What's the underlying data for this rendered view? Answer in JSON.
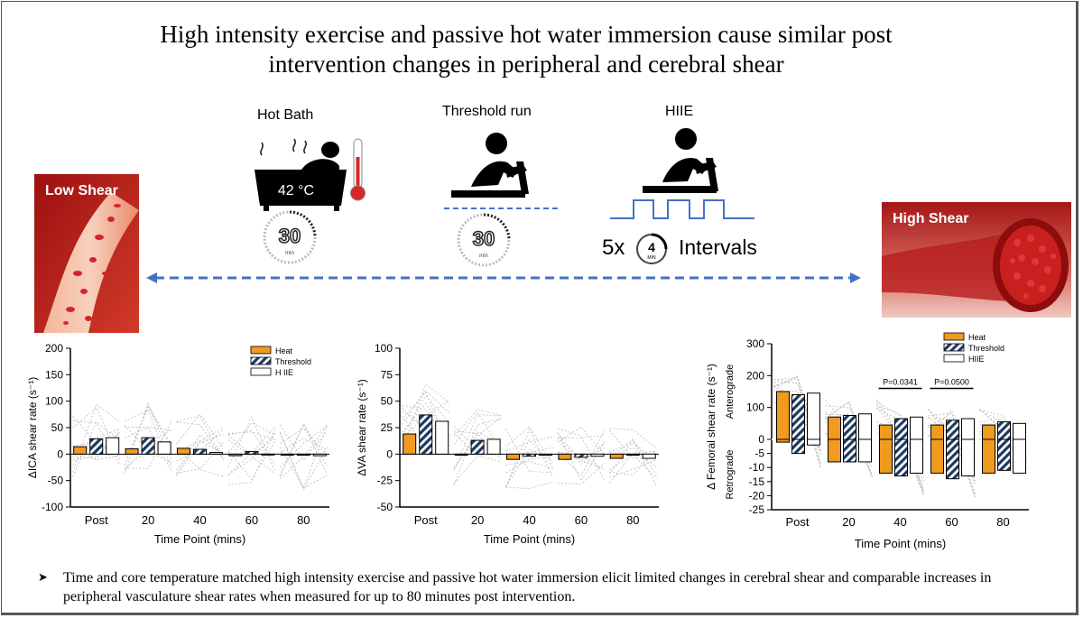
{
  "title_line1": "High intensity exercise and passive hot water immersion cause similar post",
  "title_line2": "intervention changes in peripheral and cerebral shear",
  "protocols": {
    "hot_bath": {
      "label": "Hot  Bath",
      "temp": "42 °C",
      "timer": "30",
      "timer_unit": "min"
    },
    "threshold": {
      "label": "Threshold run",
      "timer": "30",
      "timer_unit": "min"
    },
    "hiie": {
      "label": "HIIE",
      "reps": "5x",
      "interval_minutes": "4",
      "interval_unit": "MIN",
      "intervals_label": "Intervals"
    }
  },
  "low_shear_label": "Low Shear",
  "high_shear_label": "High Shear",
  "icons": [
    "bathtub-icon",
    "thermometer-icon",
    "timer-icon",
    "treadmill-runner-icon",
    "interval-timer-icon",
    "double-arrow-icon"
  ],
  "colors": {
    "heat": "#F09A1F",
    "threshold": "#1F3A5F",
    "hiie": "#FFFFFF",
    "arrow": "#4472C4",
    "individual": "#BBBBBB"
  },
  "bullet": "Time and core temperature matched high intensity exercise and passive hot water immersion elicit limited changes in cerebral shear and comparable increases in peripheral vasculature shear rates when measured for up to 80 minutes post intervention.",
  "chart_data": [
    {
      "type": "bar",
      "ylabel": "ΔICA shear rate (s⁻¹)",
      "xlabel": "Time Point (mins)",
      "categories": [
        "Post",
        "20",
        "40",
        "60",
        "80"
      ],
      "ylim": [
        -100,
        200
      ],
      "yticks": [
        "200",
        "150",
        "100",
        "50",
        "0",
        "-50",
        "-100"
      ],
      "legend": [
        "Heat",
        "Threshold",
        "H IIE"
      ],
      "series": [
        {
          "name": "Heat",
          "values": [
            14,
            10,
            11,
            -3,
            -2
          ]
        },
        {
          "name": "Threshold",
          "values": [
            29,
            31,
            9,
            5,
            -2
          ]
        },
        {
          "name": "H IIE",
          "values": [
            31,
            23,
            3,
            -1,
            -3
          ]
        }
      ]
    },
    {
      "type": "bar",
      "ylabel": "ΔVA shear rate (s⁻¹)",
      "xlabel": "Time Point (mins)",
      "categories": [
        "Post",
        "20",
        "40",
        "60",
        "80"
      ],
      "ylim": [
        -50,
        100
      ],
      "yticks": [
        "100",
        "75",
        "50",
        "25",
        "0",
        "-25",
        "-50"
      ],
      "series": [
        {
          "name": "Heat",
          "values": [
            19,
            -1,
            -5,
            -5,
            -4
          ]
        },
        {
          "name": "Threshold",
          "values": [
            37,
            13,
            -2,
            -3,
            -1
          ]
        },
        {
          "name": "HIIE",
          "values": [
            31,
            14,
            -1,
            -2,
            -4
          ]
        }
      ]
    },
    {
      "type": "bar",
      "ylabel": "Δ Femoral shear rate (s⁻¹)",
      "ylabel_top": "Anterograde",
      "ylabel_bottom": "Retrograde",
      "xlabel": "Time Point (mins)",
      "categories": [
        "Post",
        "20",
        "40",
        "60",
        "80"
      ],
      "ylim_anterograde": [
        0,
        300
      ],
      "ylim_retrograde": [
        -25,
        0
      ],
      "yticks_top": [
        "300",
        "200",
        "100",
        "0"
      ],
      "yticks_bottom": [
        "-5",
        "-10",
        "-15",
        "-20",
        "-25"
      ],
      "legend": [
        "Heat",
        "Threshold",
        "HIIE"
      ],
      "annotations": [
        {
          "text": "P=0.0341",
          "between": "40"
        },
        {
          "text": "P=0.0500",
          "between": "60"
        }
      ],
      "series": [
        {
          "name": "Heat",
          "anterograde": [
            150,
            70,
            45,
            45,
            45
          ],
          "retrograde": [
            -1,
            -8,
            -12,
            -12,
            -12
          ]
        },
        {
          "name": "Threshold",
          "anterograde": [
            140,
            75,
            65,
            60,
            55
          ],
          "retrograde": [
            -5,
            -8,
            -13,
            -14,
            -11
          ]
        },
        {
          "name": "HIIE",
          "anterograde": [
            145,
            80,
            70,
            65,
            50
          ],
          "retrograde": [
            -2,
            -8,
            -12,
            -13,
            -12
          ]
        }
      ]
    }
  ]
}
